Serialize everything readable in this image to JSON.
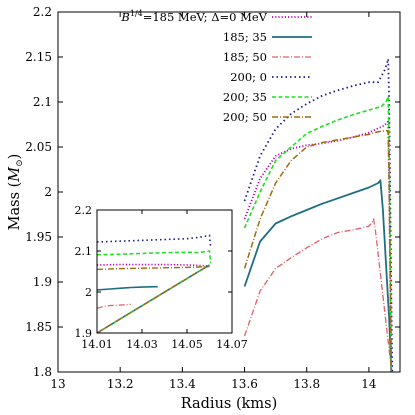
{
  "chart_data": {
    "type": "line",
    "xlabel": "Radius (kms)",
    "ylabel": "Mass (M⊙)",
    "ylabel_main": "Mass (",
    "ylabel_sym": "M",
    "ylabel_sub": "⊙",
    "ylabel_close": ")",
    "xlim": [
      13.0,
      14.1
    ],
    "ylim": [
      1.8,
      2.2
    ],
    "xticks": [
      13,
      13.2,
      13.4,
      13.6,
      13.8,
      14
    ],
    "xtick_labels": [
      "13",
      "13.2",
      "13.4",
      "13.6",
      "13.8",
      "14"
    ],
    "yticks": [
      1.8,
      1.85,
      1.9,
      1.95,
      2.0,
      2.05,
      2.1,
      2.15,
      2.2
    ],
    "ytick_labels": [
      "1.8",
      "1.85",
      "1.9",
      "1.95",
      "2",
      "2.05",
      "2.1",
      "2.15",
      "2.2"
    ],
    "grid": false,
    "legend_position": "top-right",
    "legend_first_label": {
      "prefix": "B",
      "superscript": "1/4",
      "suffix": "=185 MeV; Δ=0 MeV"
    },
    "series": [
      {
        "name": "B^1/4=185 MeV; Δ=0 MeV",
        "color": "#c000c0",
        "dash": "1.2,2",
        "width": 1.8,
        "x": [
          13.6,
          13.65,
          13.7,
          13.75,
          13.8,
          13.85,
          13.9,
          13.95,
          14.0,
          14.05,
          14.055,
          14.06,
          14.062,
          14.063,
          14.065,
          14.066,
          14.068,
          14.07,
          14.072
        ],
        "y": [
          1.97,
          2.015,
          2.04,
          2.048,
          2.052,
          2.054,
          2.057,
          2.061,
          2.066,
          2.074,
          2.076,
          2.078,
          2.078,
          2.05,
          2.02,
          1.98,
          1.92,
          1.86,
          1.8
        ]
      },
      {
        "label": "185; 35",
        "color": "#1f6e80",
        "dash": "",
        "width": 1.8,
        "x": [
          13.6,
          13.65,
          13.7,
          13.75,
          13.8,
          13.85,
          13.9,
          13.95,
          14.0,
          14.03,
          14.037,
          14.045,
          14.05,
          14.055,
          14.06,
          14.065,
          14.07,
          14.072
        ],
        "y": [
          1.895,
          1.945,
          1.965,
          1.973,
          1.98,
          1.987,
          1.993,
          1.999,
          2.005,
          2.01,
          2.013,
          1.98,
          1.95,
          1.92,
          1.89,
          1.86,
          1.82,
          1.8
        ]
      },
      {
        "label": "185; 50",
        "color": "#e0606a",
        "dash": "6,2,1,2",
        "width": 1.3,
        "x": [
          13.6,
          13.65,
          13.7,
          13.75,
          13.8,
          13.85,
          13.9,
          13.95,
          14.0,
          14.01,
          14.015,
          14.02,
          14.03,
          14.04,
          14.05,
          14.06,
          14.07,
          14.072
        ],
        "y": [
          1.84,
          1.89,
          1.915,
          1.927,
          1.938,
          1.948,
          1.955,
          1.958,
          1.962,
          1.966,
          1.97,
          1.96,
          1.93,
          1.9,
          1.87,
          1.84,
          1.81,
          1.8
        ]
      },
      {
        "label": "200; 0",
        "color": "#1a1a8c",
        "dash": "1.5,3",
        "width": 1.8,
        "x": [
          13.6,
          13.65,
          13.7,
          13.75,
          13.8,
          13.85,
          13.9,
          13.95,
          14.0,
          14.03,
          14.05,
          14.06,
          14.062,
          14.065,
          14.07,
          14.075
        ],
        "y": [
          1.99,
          2.04,
          2.07,
          2.087,
          2.098,
          2.107,
          2.113,
          2.118,
          2.122,
          2.122,
          2.135,
          2.145,
          2.148,
          2.1,
          1.95,
          1.8
        ]
      },
      {
        "label": "200; 35",
        "color": "#1ee01e",
        "dash": "4,2.5",
        "width": 1.6,
        "x": [
          13.6,
          13.65,
          13.7,
          13.75,
          13.8,
          13.85,
          13.9,
          13.95,
          14.0,
          14.04,
          14.055,
          14.06,
          14.062,
          14.065,
          14.068,
          14.072
        ],
        "y": [
          1.96,
          2.0,
          2.035,
          2.05,
          2.065,
          2.073,
          2.08,
          2.086,
          2.091,
          2.095,
          2.1,
          2.104,
          2.106,
          2.05,
          1.95,
          1.8
        ]
      },
      {
        "label": "200; 50",
        "color": "#a06a10",
        "dash": "6,2,1,2",
        "width": 1.5,
        "x": [
          13.6,
          13.65,
          13.7,
          13.75,
          13.8,
          13.85,
          13.9,
          13.95,
          14.0,
          14.03,
          14.05,
          14.06,
          14.062,
          14.064,
          14.066,
          14.068,
          14.07,
          14.072
        ],
        "y": [
          1.915,
          1.97,
          2.01,
          2.035,
          2.05,
          2.055,
          2.058,
          2.061,
          2.064,
          2.067,
          2.068,
          2.068,
          2.065,
          2.03,
          1.98,
          1.92,
          1.86,
          1.8
        ]
      }
    ],
    "inset": {
      "xlim": [
        14.01,
        14.07
      ],
      "ylim": [
        1.9,
        2.2
      ],
      "xticks": [
        14.01,
        14.03,
        14.05,
        14.07
      ],
      "xtick_labels": [
        "14.01",
        "14.03",
        "14.05",
        "14.07"
      ],
      "yticks": [
        1.9,
        2.0,
        2.1,
        2.2
      ],
      "ytick_labels": [
        "1.9",
        "2",
        "2.1",
        "2.2"
      ],
      "series": [
        {
          "color": "#c000c0",
          "dash": "1.2,2",
          "width": 1.6,
          "x": [
            14.01,
            14.02,
            14.03,
            14.04,
            14.05,
            14.055,
            14.058,
            14.06
          ],
          "y": [
            2.066,
            2.067,
            2.067,
            2.067,
            2.066,
            2.065,
            2.064,
            2.063
          ]
        },
        {
          "color": "#1a1a8c",
          "dash": "1.5,3",
          "width": 1.6,
          "x": [
            14.01,
            14.02,
            14.03,
            14.04,
            14.05,
            14.055,
            14.06,
            14.0605
          ],
          "y": [
            2.122,
            2.124,
            2.126,
            2.128,
            2.13,
            2.133,
            2.138,
            2.11
          ]
        },
        {
          "color": "#1ee01e",
          "dash": "4,2.5",
          "width": 1.5,
          "x": [
            14.01,
            14.02,
            14.03,
            14.04,
            14.05,
            14.055,
            14.06,
            14.0605
          ],
          "y": [
            2.091,
            2.092,
            2.094,
            2.096,
            2.097,
            2.096,
            2.1,
            2.07
          ]
        },
        {
          "color": "#a06a10",
          "dash": "6,2,1,2",
          "width": 1.4,
          "x": [
            14.01,
            14.02,
            14.03,
            14.04,
            14.05,
            14.055,
            14.06
          ],
          "y": [
            2.055,
            2.057,
            2.058,
            2.059,
            2.06,
            2.061,
            2.062
          ]
        },
        {
          "color": "#e0606a",
          "dash": "6,2,1,2",
          "width": 1.2,
          "x": [
            14.01,
            14.013,
            14.016,
            14.02,
            14.025
          ],
          "y": [
            1.96,
            1.965,
            1.967,
            1.968,
            1.97
          ]
        },
        {
          "color": "#1f6e80",
          "dash": "",
          "width": 1.6,
          "x": [
            14.01,
            14.015,
            14.02,
            14.025,
            14.03,
            14.036,
            14.037
          ],
          "y": [
            2.005,
            2.007,
            2.009,
            2.011,
            2.012,
            2.013,
            2.013
          ]
        },
        {
          "color": "#c000c0",
          "dash": "1.2,2",
          "width": 1.4,
          "x": [
            14.01,
            14.06
          ],
          "y": [
            1.9,
            2.066
          ]
        },
        {
          "color": "#1f6e80",
          "dash": "",
          "width": 1.6,
          "x": [
            14.01,
            14.06
          ],
          "y": [
            1.9,
            2.066
          ]
        },
        {
          "color": "#1ee01e",
          "dash": "4,2.5",
          "width": 1.4,
          "x": [
            14.01,
            14.06
          ],
          "y": [
            1.9,
            2.066
          ]
        },
        {
          "color": "#a06a10",
          "dash": "6,2,1,2",
          "width": 1.3,
          "x": [
            14.01,
            14.06
          ],
          "y": [
            1.9,
            2.066
          ]
        }
      ]
    }
  }
}
